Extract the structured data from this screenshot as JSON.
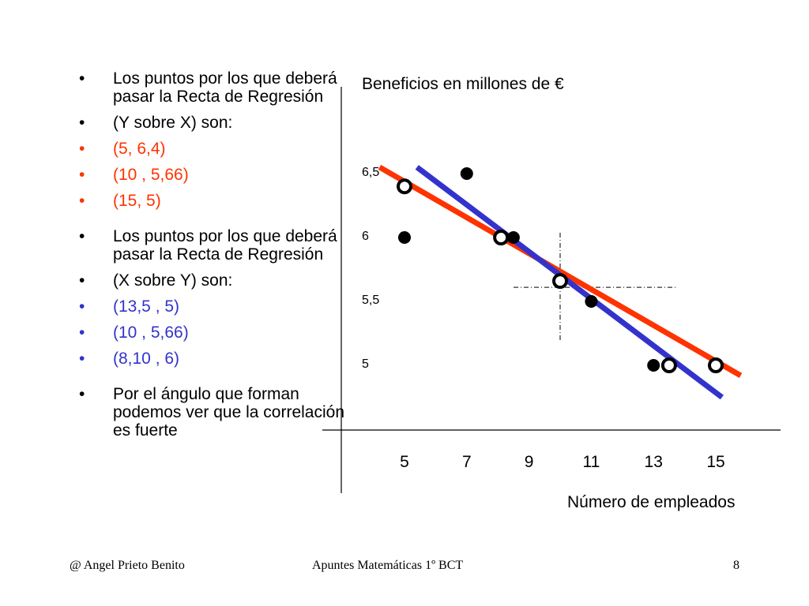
{
  "bullets": [
    {
      "text": "Los puntos por los que deberá pasar la Recta de Regresión",
      "color": "black"
    },
    {
      "text": "(Y sobre X) son:",
      "color": "black"
    },
    {
      "text": "(5,  6,4)",
      "color": "red"
    },
    {
      "text": "(10 , 5,66)",
      "color": "red"
    },
    {
      "text": "(15, 5)",
      "color": "red"
    },
    {
      "text": "Los puntos por los que deberá pasar la Recta de Regresión",
      "color": "black"
    },
    {
      "text": "(X sobre Y) son:",
      "color": "black"
    },
    {
      "text": "(13,5 ,  5)",
      "color": "blue"
    },
    {
      "text": "(10 , 5,66)",
      "color": "blue"
    },
    {
      "text": "(8,10 , 6)",
      "color": "blue"
    },
    {
      "text": "Por el ángulo que forman podemos ver que la correlación  es fuerte",
      "color": "black"
    }
  ],
  "chart_data": {
    "type": "scatter",
    "ylabel": "Beneficios en millones de €",
    "xlabel": "Número de empleados",
    "x_ticks": [
      "5",
      "7",
      "9",
      "11",
      "13",
      "15"
    ],
    "y_ticks": [
      "6,5",
      "6",
      "5,5",
      "5"
    ],
    "data_points": [
      {
        "x": 7,
        "y": 6.5
      },
      {
        "x": 5,
        "y": 6
      },
      {
        "x": 8.5,
        "y": 6
      },
      {
        "x": 11,
        "y": 5.5
      },
      {
        "x": 13,
        "y": 5
      }
    ],
    "regression_points_y_on_x": [
      {
        "x": 5,
        "y": 6.4
      },
      {
        "x": 10,
        "y": 5.66
      },
      {
        "x": 15,
        "y": 5
      }
    ],
    "regression_points_x_on_y": [
      {
        "x": 13.5,
        "y": 5
      },
      {
        "x": 10,
        "y": 5.66
      },
      {
        "x": 8.1,
        "y": 6
      }
    ],
    "mean_point": {
      "x": 10,
      "y": 5.66
    },
    "lines": [
      {
        "name": "Y sobre X",
        "color": "#ff3300",
        "from": {
          "x": 4.2,
          "y": 6.55
        },
        "to": {
          "x": 15.8,
          "y": 4.92
        }
      },
      {
        "name": "X sobre Y",
        "color": "#3333cc",
        "from": {
          "x": 5.4,
          "y": 6.55
        },
        "to": {
          "x": 15.2,
          "y": 4.75
        }
      }
    ]
  },
  "footer": {
    "left": "@   Angel Prieto Benito",
    "center": "Apuntes Matemáticas 1º BCT",
    "right": "8"
  }
}
